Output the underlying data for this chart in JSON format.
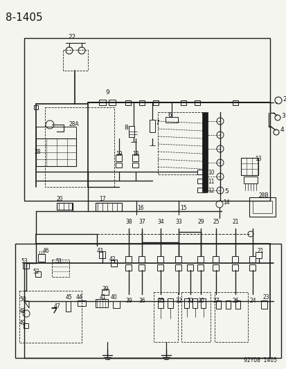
{
  "title": "8-1405",
  "subtitle": "92Y08  1405",
  "bg_color": "#f5f5f0",
  "line_color": "#1a1a1a",
  "text_color": "#111111",
  "title_fontsize": 11,
  "label_fontsize": 6.5,
  "small_fontsize": 5.5,
  "fig_width": 4.14,
  "fig_height": 5.33,
  "dpi": 100
}
